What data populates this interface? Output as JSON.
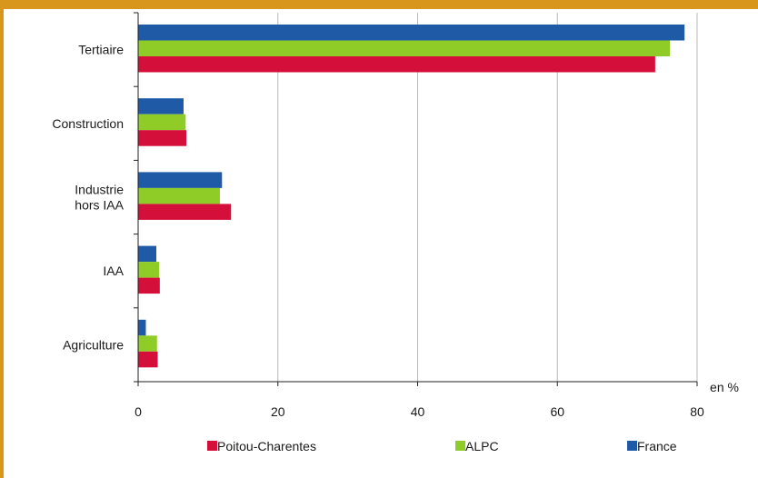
{
  "colors": {
    "frame": "#d9961c",
    "grid": "#b8b8b8",
    "axis": "#222222"
  },
  "chart_data": {
    "type": "bar",
    "orientation": "horizontal",
    "title": "",
    "unit_label": "en %",
    "categories": [
      "Tertiaire",
      "Construction",
      "Industrie hors IAA",
      "IAA",
      "Agriculture"
    ],
    "category_lines": [
      [
        "Tertiaire"
      ],
      [
        "Construction"
      ],
      [
        "Industrie",
        "hors IAA"
      ],
      [
        "IAA"
      ],
      [
        "Agriculture"
      ]
    ],
    "series": [
      {
        "name": "France",
        "color": "#1e5aa6",
        "values": [
          78.2,
          6.5,
          12.0,
          2.6,
          1.1
        ]
      },
      {
        "name": "ALPC",
        "color": "#8fcc28",
        "values": [
          76.1,
          6.8,
          11.7,
          3.0,
          2.7
        ]
      },
      {
        "name": "Poitou-Charentes",
        "color": "#d4103a",
        "values": [
          74.0,
          6.9,
          13.3,
          3.1,
          2.8
        ]
      }
    ],
    "legend_order": [
      "Poitou-Charentes",
      "ALPC",
      "France"
    ],
    "xlim": [
      0,
      80
    ],
    "xticks": [
      0,
      20,
      40,
      60,
      80
    ],
    "grid": true,
    "legend_position": "bottom"
  }
}
